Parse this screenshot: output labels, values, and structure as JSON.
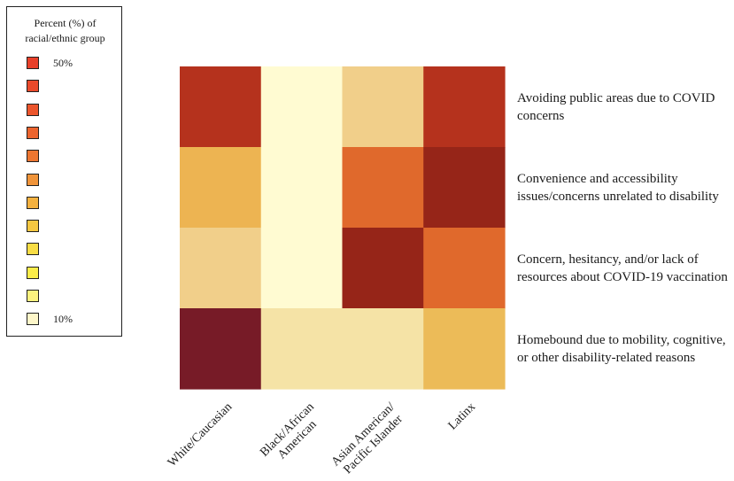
{
  "legend": {
    "title_line1": "Percent (%) of",
    "title_line2": "racial/ethnic group",
    "max_label": "50%",
    "min_label": "10%",
    "swatch_colors": [
      "#e8402a",
      "#ea4a2b",
      "#ec552c",
      "#ec642e",
      "#ed7631",
      "#f0943a",
      "#f4b13f",
      "#f6c842",
      "#f8dd45",
      "#fbed4a",
      "#fcf27f",
      "#fdf6c9"
    ]
  },
  "chart_data": {
    "type": "heatmap",
    "title": "",
    "legend_title": "Percent (%) of racial/ethnic group",
    "value_range": [
      10,
      50
    ],
    "columns": [
      "White/Caucasian",
      "Black/African American",
      "Asian American/ Pacific Islander",
      "Latinx"
    ],
    "column_label_lines": [
      [
        "White/Caucasian"
      ],
      [
        "Black/African",
        "American"
      ],
      [
        "Asian American/",
        "Pacific Islander"
      ],
      [
        "Latinx"
      ]
    ],
    "rows": [
      "Avoiding public areas due to COVID concerns",
      "Convenience and accessibility issues/concerns unrelated to disability",
      "Concern, hesitancy, and/or lack of resources about COVID-19 vaccination",
      "Homebound due to mobility, cognitive, or other disability-related reasons"
    ],
    "row_label_lines": [
      [
        "Avoiding public areas due to COVID",
        "concerns"
      ],
      [
        "Convenience and accessibility",
        "issues/concerns unrelated to disability"
      ],
      [
        "Concern, hesitancy, and/or lack of",
        "resources about COVID-19 vaccination"
      ],
      [
        "Homebound due to mobility, cognitive,",
        "or other disability-related reasons"
      ]
    ],
    "cell_colors": [
      [
        "#b5321d",
        "#fffbd2",
        "#f1cf8a",
        "#b5321d"
      ],
      [
        "#edb452",
        "#fffbd2",
        "#e0692c",
        "#962518"
      ],
      [
        "#f1cf8a",
        "#fffbd2",
        "#962518",
        "#e0692c"
      ],
      [
        "#771b27",
        "#f5e3a6",
        "#f5e3a6",
        "#ecbb58"
      ]
    ],
    "values": [
      [
        40,
        10,
        20,
        40
      ],
      [
        26,
        10,
        34,
        45
      ],
      [
        20,
        10,
        45,
        34
      ],
      [
        50,
        15,
        15,
        24
      ]
    ]
  }
}
